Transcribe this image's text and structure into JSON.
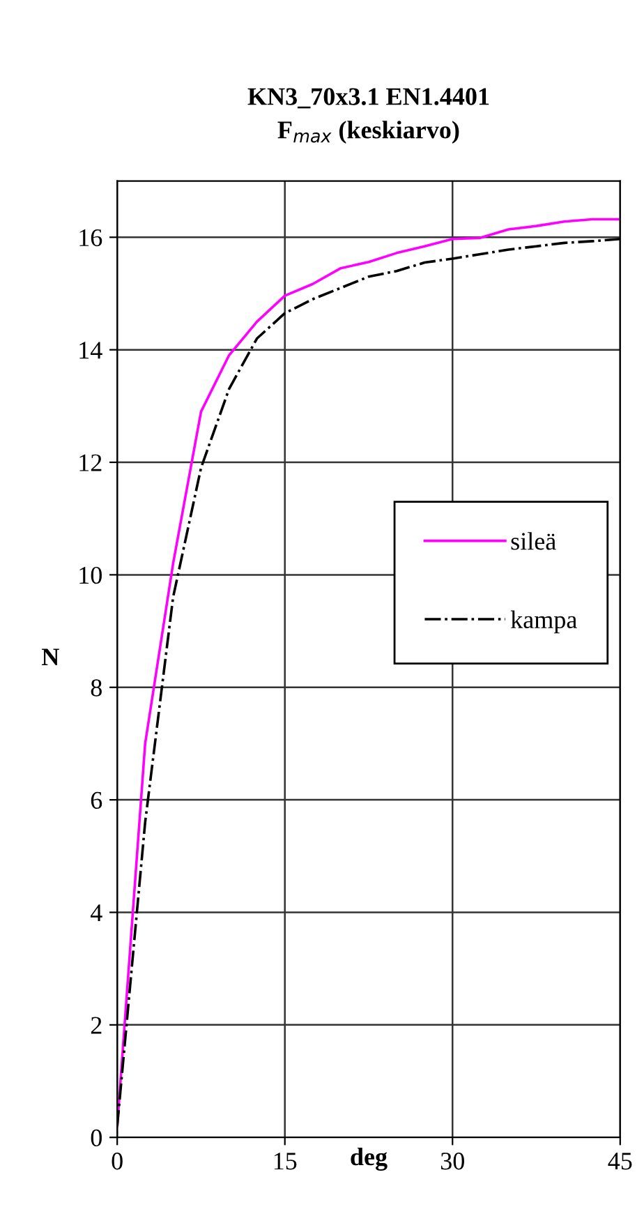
{
  "chart_data": {
    "type": "line",
    "title": "KN3_70x3.1 EN1.4401\nF$_{max}$ (keskiarvo)",
    "xlabel": "deg",
    "ylabel": "N",
    "x": [
      0,
      2.5,
      5,
      7.5,
      10,
      12.5,
      15,
      17.5,
      20,
      22.5,
      25,
      27.5,
      30,
      32.5,
      35,
      37.5,
      40,
      42.5,
      45
    ],
    "series": [
      {
        "name": "sileä",
        "color": "#ff00ff",
        "line_style": "solid",
        "values": [
          0.2,
          7.0,
          10.2,
          12.9,
          13.9,
          14.5,
          14.96,
          15.17,
          15.45,
          15.56,
          15.72,
          15.84,
          15.97,
          15.99,
          16.14,
          16.2,
          16.28,
          16.32,
          16.32
        ]
      },
      {
        "name": "kampa",
        "color": "#000000",
        "line_style": "dashdot",
        "values": [
          0.2,
          5.6,
          9.6,
          11.9,
          13.3,
          14.2,
          14.65,
          14.9,
          15.1,
          15.3,
          15.4,
          15.55,
          15.62,
          15.7,
          15.78,
          15.84,
          15.9,
          15.93,
          15.97
        ]
      }
    ],
    "xlim": [
      0,
      45
    ],
    "xticks": [
      0,
      15,
      30,
      45
    ],
    "ylim": [
      0,
      17
    ],
    "yticks": [
      0,
      2,
      4,
      6,
      8,
      10,
      12,
      14,
      16
    ],
    "grid": true,
    "legend": "center right",
    "marker": "none"
  }
}
